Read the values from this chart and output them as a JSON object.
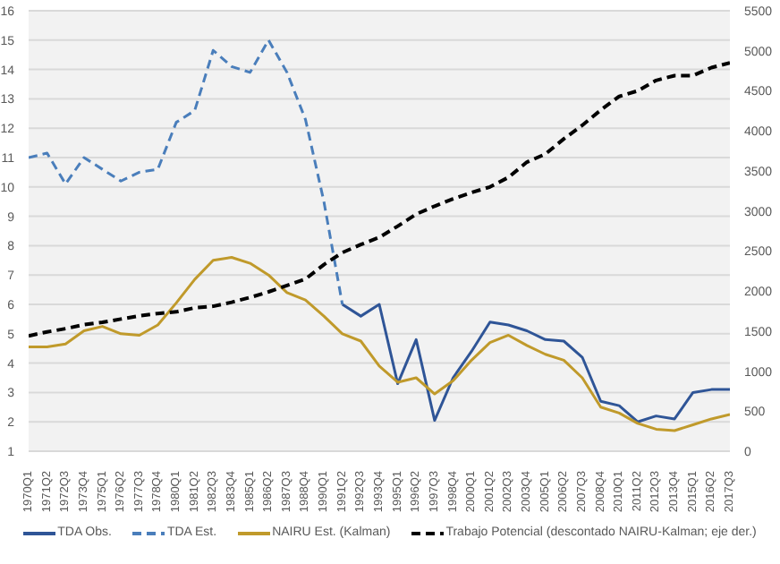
{
  "chart_data": {
    "type": "line",
    "categories": [
      "1970Q1",
      "1971Q2",
      "1972Q3",
      "1973Q4",
      "1975Q1",
      "1976Q2",
      "1977Q3",
      "1978Q4",
      "1980Q1",
      "1981Q2",
      "1982Q3",
      "1983Q4",
      "1985Q1",
      "1986Q2",
      "1987Q3",
      "1988Q4",
      "1990Q1",
      "1991Q2",
      "1992Q3",
      "1993Q4",
      "1995Q1",
      "1996Q2",
      "1997Q3",
      "1998Q4",
      "2000Q1",
      "2001Q2",
      "2002Q3",
      "2003Q4",
      "2005Q1",
      "2006Q2",
      "2007Q3",
      "2008Q4",
      "2010Q1",
      "2011Q2",
      "2012Q3",
      "2013Q4",
      "2015Q1",
      "2016Q2",
      "2017Q3"
    ],
    "ylim": [
      1,
      16
    ],
    "yticks": [
      1,
      2,
      3,
      4,
      5,
      6,
      7,
      8,
      9,
      10,
      11,
      12,
      13,
      14,
      15,
      16
    ],
    "y2lim": [
      0,
      5500
    ],
    "y2ticks": [
      0,
      500,
      1000,
      1500,
      2000,
      2500,
      3000,
      3500,
      4000,
      4500,
      5000,
      5500
    ],
    "grid": "y",
    "legend": "bottom",
    "marker": "none",
    "series": [
      {
        "name": "TDA Obs.",
        "color": "#2f5597",
        "line_style": "solid",
        "values": [
          null,
          null,
          null,
          null,
          null,
          null,
          null,
          null,
          null,
          null,
          null,
          null,
          null,
          null,
          null,
          null,
          null,
          6.0,
          5.6,
          6.0,
          3.3,
          4.8,
          2.05,
          3.5,
          4.4,
          5.4,
          5.3,
          5.1,
          4.8,
          4.75,
          4.2,
          2.7,
          2.55,
          2.0,
          2.2,
          2.1,
          3.0,
          3.1,
          3.1
        ]
      },
      {
        "name": "TDA Est.",
        "color": "#4a7ebb",
        "line_style": "dashed",
        "values": [
          11.0,
          11.15,
          10.1,
          11.0,
          10.6,
          10.2,
          10.5,
          10.6,
          12.2,
          12.6,
          14.65,
          14.1,
          13.9,
          15.0,
          13.9,
          12.3,
          9.5,
          6.0,
          null,
          null,
          null,
          null,
          null,
          null,
          null,
          null,
          null,
          null,
          null,
          null,
          null,
          null,
          null,
          null,
          null,
          null,
          null,
          null,
          null
        ]
      },
      {
        "name": "NAIRU Est. (Kalman)",
        "color": "#c09a2b",
        "line_style": "solid",
        "values": [
          4.55,
          4.55,
          4.65,
          5.1,
          5.25,
          5.0,
          4.95,
          5.3,
          6.05,
          6.85,
          7.5,
          7.6,
          7.4,
          7.0,
          6.4,
          6.15,
          5.6,
          5.0,
          4.75,
          3.9,
          3.35,
          3.5,
          2.95,
          3.4,
          4.1,
          4.7,
          4.95,
          4.6,
          4.3,
          4.1,
          3.5,
          2.5,
          2.3,
          1.95,
          1.75,
          1.7,
          1.9,
          2.1,
          2.25
        ]
      },
      {
        "name": "Trabajo Potencial (descontado NAIRU-Kalman; eje der.)",
        "color": "#000000",
        "line_style": "dashed",
        "axis": "y2",
        "values": [
          1440,
          1490,
          1530,
          1580,
          1610,
          1650,
          1690,
          1720,
          1740,
          1790,
          1810,
          1860,
          1920,
          1990,
          2070,
          2150,
          2330,
          2480,
          2580,
          2670,
          2810,
          2960,
          3060,
          3150,
          3230,
          3300,
          3420,
          3610,
          3710,
          3900,
          4070,
          4260,
          4430,
          4500,
          4630,
          4690,
          4690,
          4790,
          4850
        ]
      }
    ]
  }
}
